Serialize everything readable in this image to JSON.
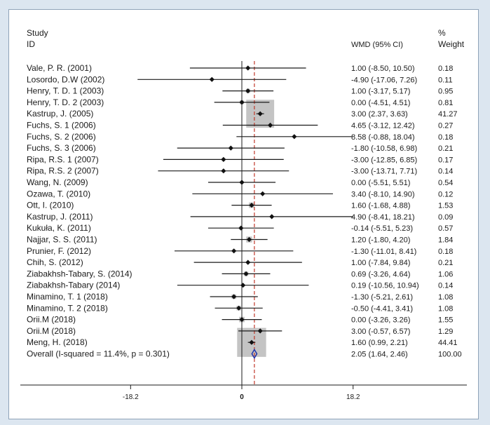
{
  "chart_data": {
    "type": "forest",
    "headers": {
      "study_line1": "Study",
      "study_line2": "ID",
      "wmd": "WMD (95% CI)",
      "weight_line1": "%",
      "weight_line2": "Weight"
    },
    "reference_line": 0,
    "overall_line": 2.05,
    "x_ticks": [
      {
        "value": -18.2,
        "label": "-18.2"
      },
      {
        "value": 0,
        "label": "0"
      },
      {
        "value": 18.2,
        "label": "18.2"
      }
    ],
    "studies": [
      {
        "label": "Vale, P. R. (2001)",
        "est": 1.0,
        "lo": -8.5,
        "hi": 10.5,
        "ci_text": "1.00 (-8.50, 10.50)",
        "weight": "0.18"
      },
      {
        "label": "Losordo, D.W (2002)",
        "est": -4.9,
        "lo": -17.06,
        "hi": 7.26,
        "ci_text": "-4.90 (-17.06, 7.26)",
        "weight": "0.11"
      },
      {
        "label": "Henry, T. D. 1 (2003)",
        "est": 1.0,
        "lo": -3.17,
        "hi": 5.17,
        "ci_text": "1.00 (-3.17, 5.17)",
        "weight": "0.95"
      },
      {
        "label": "Henry, T. D. 2 (2003)",
        "est": 0.0,
        "lo": -4.51,
        "hi": 4.51,
        "ci_text": "0.00 (-4.51, 4.51)",
        "weight": "0.81"
      },
      {
        "label": "Kastrup, J. (2005)",
        "est": 3.0,
        "lo": 2.37,
        "hi": 3.63,
        "ci_text": "3.00 (2.37, 3.63)",
        "weight": "41.27"
      },
      {
        "label": "Fuchs, S. 1 (2006)",
        "est": 4.65,
        "lo": -3.12,
        "hi": 12.42,
        "ci_text": "4.65 (-3.12, 12.42)",
        "weight": "0.27"
      },
      {
        "label": "Fuchs, S. 2 (2006)",
        "est": 8.58,
        "lo": -0.88,
        "hi": 18.04,
        "ci_text": "8.58 (-0.88, 18.04)",
        "weight": "0.18"
      },
      {
        "label": "Fuchs, S. 3 (2006)",
        "est": -1.8,
        "lo": -10.58,
        "hi": 6.98,
        "ci_text": "-1.80 (-10.58, 6.98)",
        "weight": "0.21"
      },
      {
        "label": "Ripa, R.S. 1 (2007)",
        "est": -3.0,
        "lo": -12.85,
        "hi": 6.85,
        "ci_text": "-3.00 (-12.85, 6.85)",
        "weight": "0.17"
      },
      {
        "label": "Ripa, R.S. 2 (2007)",
        "est": -3.0,
        "lo": -13.71,
        "hi": 7.71,
        "ci_text": "-3.00 (-13.71, 7.71)",
        "weight": "0.14"
      },
      {
        "label": "Wang, N. (2009)",
        "est": 0.0,
        "lo": -5.51,
        "hi": 5.51,
        "ci_text": "0.00 (-5.51, 5.51)",
        "weight": "0.54"
      },
      {
        "label": "Ozawa, T. (2010)",
        "est": 3.4,
        "lo": -8.1,
        "hi": 14.9,
        "ci_text": "3.40 (-8.10, 14.90)",
        "weight": "0.12"
      },
      {
        "label": "Ott, I. (2010)",
        "est": 1.6,
        "lo": -1.68,
        "hi": 4.88,
        "ci_text": "1.60 (-1.68, 4.88)",
        "weight": "1.53"
      },
      {
        "label": "Kastrup, J. (2011)",
        "est": 4.9,
        "lo": -8.41,
        "hi": 18.21,
        "ci_text": "4.90 (-8.41, 18.21)",
        "weight": "0.09"
      },
      {
        "label": "Kukuła, K. (2011)",
        "est": -0.14,
        "lo": -5.51,
        "hi": 5.23,
        "ci_text": "-0.14 (-5.51, 5.23)",
        "weight": "0.57"
      },
      {
        "label": "Najjar, S. S. (2011)",
        "est": 1.2,
        "lo": -1.8,
        "hi": 4.2,
        "ci_text": "1.20 (-1.80, 4.20)",
        "weight": "1.84"
      },
      {
        "label": "Prunier, F. (2012)",
        "est": -1.3,
        "lo": -11.01,
        "hi": 8.41,
        "ci_text": "-1.30 (-11.01, 8.41)",
        "weight": "0.18"
      },
      {
        "label": "Chih, S. (2012)",
        "est": 1.0,
        "lo": -7.84,
        "hi": 9.84,
        "ci_text": "1.00 (-7.84, 9.84)",
        "weight": "0.21"
      },
      {
        "label": "Ziabakhsh-Tabary, S. (2014)",
        "est": 0.69,
        "lo": -3.26,
        "hi": 4.64,
        "ci_text": "0.69 (-3.26, 4.64)",
        "weight": "1.06"
      },
      {
        "label": "Ziabakhsh-Tabary (2014)",
        "est": 0.19,
        "lo": -10.56,
        "hi": 10.94,
        "ci_text": "0.19 (-10.56, 10.94)",
        "weight": "0.14"
      },
      {
        "label": "Minamino, T. 1 (2018)",
        "est": -1.3,
        "lo": -5.21,
        "hi": 2.61,
        "ci_text": "-1.30 (-5.21, 2.61)",
        "weight": "1.08"
      },
      {
        "label": "Minamino, T. 2 (2018)",
        "est": -0.5,
        "lo": -4.41,
        "hi": 3.41,
        "ci_text": "-0.50 (-4.41, 3.41)",
        "weight": "1.08"
      },
      {
        "label": "Orii.M (2018)",
        "est": 0.0,
        "lo": -3.26,
        "hi": 3.26,
        "ci_text": "0.00 (-3.26, 3.26)",
        "weight": "1.55"
      },
      {
        "label": "Orii.M (2018)",
        "est": 3.0,
        "lo": -0.57,
        "hi": 6.57,
        "ci_text": "3.00 (-0.57, 6.57)",
        "weight": "1.29"
      },
      {
        "label": "Meng, H. (2018)",
        "est": 1.6,
        "lo": 0.99,
        "hi": 2.21,
        "ci_text": "1.60 (0.99, 2.21)",
        "weight": "44.41"
      }
    ],
    "overall": {
      "label": "Overall  (I-squared = 11.4%, p = 0.301)",
      "est": 2.05,
      "lo": 1.64,
      "hi": 2.46,
      "ci_text": "2.05 (1.64, 2.46)",
      "weight": "100.00"
    },
    "colors": {
      "ci_line": "#1a1a1a",
      "point": "#111111",
      "weight_box": "#c4c4c4",
      "overall_diamond": "#2233aa",
      "overall_line": "#c0392b",
      "axis": "#1a1a1a"
    }
  }
}
